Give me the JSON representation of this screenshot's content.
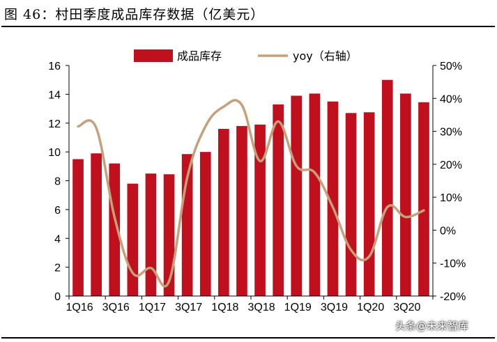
{
  "title": "图 46：村田季度成品库存数据（亿美元）",
  "watermark": "头条@未来智库",
  "colors": {
    "bar": "#C0101E",
    "line": "#C4A17A",
    "axis": "#000000"
  },
  "chart_data": {
    "type": "bar",
    "categories": [
      "1Q16",
      "2Q16",
      "3Q16",
      "4Q16",
      "1Q17",
      "2Q17",
      "3Q17",
      "4Q17",
      "1Q18",
      "2Q18",
      "3Q18",
      "4Q18",
      "1Q19",
      "2Q19",
      "3Q19",
      "4Q19",
      "1Q20",
      "2Q20",
      "3Q20",
      "4Q20"
    ],
    "x_tick_labels": [
      "1Q16",
      "3Q16",
      "1Q17",
      "3Q17",
      "1Q18",
      "3Q18",
      "1Q19",
      "3Q19",
      "1Q20",
      "3Q20"
    ],
    "series": [
      {
        "name": "成品库存",
        "type": "bar",
        "axis": "left",
        "values": [
          9.5,
          9.9,
          9.2,
          7.8,
          8.5,
          8.45,
          9.85,
          10.0,
          11.6,
          11.8,
          11.9,
          13.3,
          13.9,
          14.05,
          13.5,
          12.7,
          12.75,
          15.0,
          14.05,
          13.45
        ]
      },
      {
        "name": "yoy（右轴）",
        "type": "line",
        "axis": "right",
        "values": [
          0.315,
          0.31,
          0.04,
          -0.13,
          -0.115,
          -0.155,
          0.16,
          0.315,
          0.375,
          0.38,
          0.21,
          0.33,
          0.195,
          0.175,
          0.07,
          -0.06,
          -0.08,
          0.07,
          0.04,
          0.06
        ]
      }
    ],
    "left_axis": {
      "min": 0,
      "max": 16,
      "ticks": [
        "0",
        "2",
        "4",
        "6",
        "8",
        "10",
        "12",
        "14",
        "16"
      ]
    },
    "right_axis": {
      "min": -0.2,
      "max": 0.5,
      "ticks": [
        "-20%",
        "-10%",
        "0%",
        "10%",
        "20%",
        "30%",
        "40%",
        "50%"
      ]
    },
    "legend": {
      "position": "top",
      "entries": [
        "成品库存",
        "yoy（右轴）"
      ]
    },
    "grid": false
  }
}
